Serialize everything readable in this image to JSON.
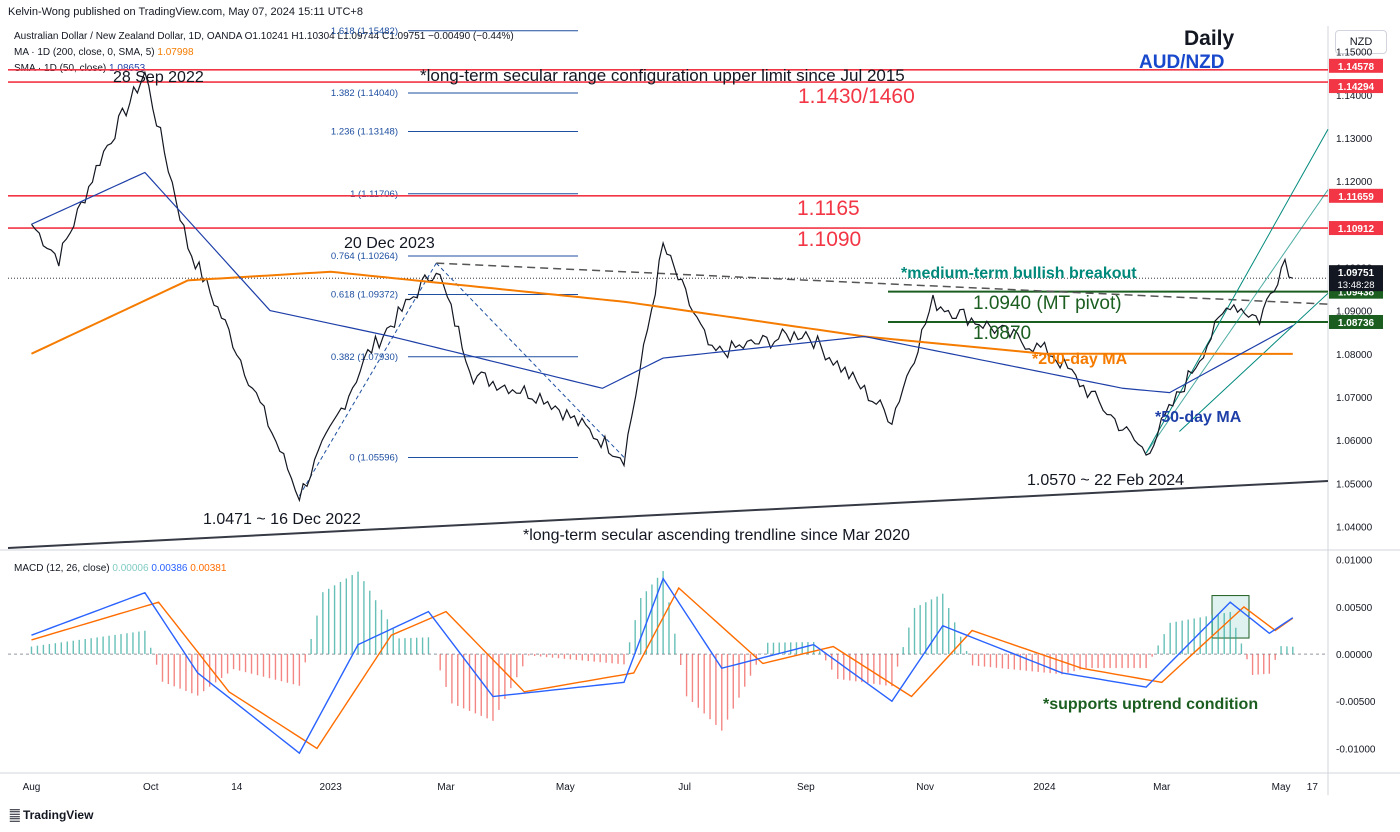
{
  "publisher": "Kelvin-Wong published on TradingView.com, May 07, 2024 15:11 UTC+8",
  "legend": {
    "instrument": "Australian Dollar / New Zealand Dollar, 1D, OANDA",
    "ohlc": "O1.10241 H1.10304 L1.09744 C1.09751 −0.00490 (−0.44%)",
    "ma200_label": "MA · 1D (200, close, 0, SMA, 5)",
    "ma200_value": "1.07998",
    "sma50_label": "SMA · 1D (50, close)",
    "sma50_value": "1.08653",
    "macd_label": "MACD (12, 26, close)",
    "macd_hist": "0.00006",
    "macd_line": "0.00386",
    "macd_signal": "0.00381"
  },
  "header": {
    "timeframe": "Daily",
    "symbol": "AUD/NZD",
    "currency": "NZD"
  },
  "colors": {
    "resistance": "#f23645",
    "support": "#1b5e20",
    "breakout": "#00897b",
    "ma200": "#f57c00",
    "ma50": "#1e3fa8",
    "fib": "#1e4fa0",
    "macd": "#2962ff",
    "signal": "#ff6d00",
    "hist_up": "#26a69a",
    "hist_down": "#ef5350"
  },
  "chart_data": [
    {
      "type": "candlestick",
      "title": "AUD/NZD Daily",
      "ylim": [
        1.035,
        1.155
      ],
      "y_ticks": [
        "1.15000",
        "1.14000",
        "1.13000",
        "1.12000",
        "1.11000",
        "1.10000",
        "1.09000",
        "1.08000",
        "1.07000",
        "1.06000",
        "1.05000",
        "1.04000"
      ],
      "x_ticks": [
        "Aug",
        "Oct",
        "14",
        "2023",
        "Mar",
        "May",
        "Jul",
        "Sep",
        "Nov",
        "2024",
        "Mar",
        "May",
        "17"
      ],
      "price_path_close": [
        [
          "2022-08-01",
          1.11
        ],
        [
          "2022-08-15",
          1.102
        ],
        [
          "2022-09-05",
          1.125
        ],
        [
          "2022-09-28",
          1.145
        ],
        [
          "2022-10-20",
          1.105
        ],
        [
          "2022-11-10",
          1.085
        ],
        [
          "2022-12-16",
          1.0471
        ],
        [
          "2023-01-20",
          1.08
        ],
        [
          "2023-02-24",
          1.1
        ],
        [
          "2023-03-15",
          1.075
        ],
        [
          "2023-04-20",
          1.07
        ],
        [
          "2023-05-31",
          1.056
        ],
        [
          "2023-06-20",
          1.105
        ],
        [
          "2023-07-15",
          1.08
        ],
        [
          "2023-09-01",
          1.085
        ],
        [
          "2023-10-15",
          1.065
        ],
        [
          "2023-11-05",
          1.092
        ],
        [
          "2024-01-05",
          1.08
        ],
        [
          "2024-02-22",
          1.057
        ],
        [
          "2024-04-05",
          1.092
        ],
        [
          "2024-04-20",
          1.088
        ],
        [
          "2024-05-03",
          1.102
        ],
        [
          "2024-05-07",
          1.09751
        ]
      ],
      "ma200_path": [
        [
          "2022-08-01",
          1.08
        ],
        [
          "2022-10-20",
          1.097
        ],
        [
          "2023-01-01",
          1.099
        ],
        [
          "2023-06-01",
          1.092
        ],
        [
          "2023-10-01",
          1.084
        ],
        [
          "2024-01-01",
          1.08
        ],
        [
          "2024-05-07",
          1.07998
        ]
      ],
      "sma50_path": [
        [
          "2022-08-01",
          1.11
        ],
        [
          "2022-09-28",
          1.122
        ],
        [
          "2022-12-01",
          1.09
        ],
        [
          "2023-02-01",
          1.084
        ],
        [
          "2023-05-20",
          1.072
        ],
        [
          "2023-06-20",
          1.079
        ],
        [
          "2023-10-01",
          1.084
        ],
        [
          "2024-02-10",
          1.072
        ],
        [
          "2024-03-05",
          1.071
        ],
        [
          "2024-05-07",
          1.08653
        ]
      ],
      "horizontal_levels": [
        {
          "value": 1.14578,
          "label": "1.14578"
        },
        {
          "value": 1.14294,
          "label": "1.14294"
        },
        {
          "value": 1.11659,
          "label": "1.11659"
        },
        {
          "value": 1.10912,
          "label": "1.10912"
        },
        {
          "value": 1.09438,
          "label": "1.09438"
        },
        {
          "value": 1.08736,
          "label": "1.08736"
        }
      ],
      "last_price": {
        "value": 1.09751,
        "label": "1.09751",
        "countdown": "13:48:28"
      },
      "fibonacci": [
        {
          "value": 1.15482,
          "label": "1.618 (1.15482)"
        },
        {
          "value": 1.1404,
          "label": "1.382 (1.14040)"
        },
        {
          "value": 1.13148,
          "label": "1.236 (1.13148)"
        },
        {
          "value": 1.11706,
          "label": "1 (1.11706)"
        },
        {
          "value": 1.10264,
          "label": "0.764 (1.10264)"
        },
        {
          "value": 1.09372,
          "label": "0.618 (1.09372)"
        },
        {
          "value": 1.0793,
          "label": "0.382 (1.07930)"
        },
        {
          "value": 1.05596,
          "label": "0 (1.05596)"
        }
      ],
      "annotations": {
        "range_upper": "*long-term secular range configuration upper limit since Jul 2015",
        "level_1430": "1.1430/1460",
        "level_1165": "1.1165",
        "level_1090": "1.1090",
        "breakout": "*medium-term bullish breakout",
        "mt_pivot": "1.0940 (MT pivot)",
        "level_0870": "1.0870",
        "ma200_note": "*200-day MA",
        "ma50_note": "*50-day MA",
        "high_2022": "28 Sep 2022",
        "high_2023": "20 Dec 2023",
        "low_2022": "1.0471 ~ 16 Dec 2022",
        "low_2024": "1.0570 ~ 22 Feb 2024",
        "trendline_note": "*long-term secular ascending trendline since Mar 2020"
      }
    },
    {
      "type": "line",
      "title": "MACD (12, 26, close)",
      "ylim": [
        -0.0125,
        0.0105
      ],
      "y_ticks": [
        "0.01000",
        "0.00500",
        "0.00000",
        "-0.00500",
        "-0.01000"
      ],
      "macd_path": [
        [
          "2022-08-01",
          0.002
        ],
        [
          "2022-09-28",
          0.0065
        ],
        [
          "2022-10-25",
          -0.002
        ],
        [
          "2022-12-16",
          -0.0105
        ],
        [
          "2023-01-15",
          0.001
        ],
        [
          "2023-02-20",
          0.0045
        ],
        [
          "2023-03-25",
          -0.0045
        ],
        [
          "2023-05-31",
          -0.003
        ],
        [
          "2023-06-20",
          0.008
        ],
        [
          "2023-07-20",
          -0.0015
        ],
        [
          "2023-09-05",
          0.001
        ],
        [
          "2023-10-15",
          -0.005
        ],
        [
          "2023-11-10",
          0.003
        ],
        [
          "2024-01-10",
          -0.002
        ],
        [
          "2024-02-22",
          -0.0035
        ],
        [
          "2024-04-05",
          0.0055
        ],
        [
          "2024-04-25",
          0.0022
        ],
        [
          "2024-05-07",
          0.00386
        ]
      ],
      "signal_path": [
        [
          "2022-08-01",
          0.0015
        ],
        [
          "2022-10-05",
          0.0055
        ],
        [
          "2022-11-10",
          -0.004
        ],
        [
          "2022-12-25",
          -0.01
        ],
        [
          "2023-02-01",
          0.002
        ],
        [
          "2023-03-01",
          0.0045
        ],
        [
          "2023-04-10",
          -0.004
        ],
        [
          "2023-06-05",
          -0.002
        ],
        [
          "2023-06-28",
          0.007
        ],
        [
          "2023-08-10",
          -0.001
        ],
        [
          "2023-09-15",
          0.0008
        ],
        [
          "2023-10-25",
          -0.0045
        ],
        [
          "2023-11-25",
          0.0025
        ],
        [
          "2024-01-20",
          -0.0015
        ],
        [
          "2024-03-01",
          -0.003
        ],
        [
          "2024-04-12",
          0.005
        ],
        [
          "2024-04-28",
          0.0025
        ],
        [
          "2024-05-07",
          0.00381
        ]
      ],
      "annotation": "*supports uptrend condition"
    }
  ]
}
